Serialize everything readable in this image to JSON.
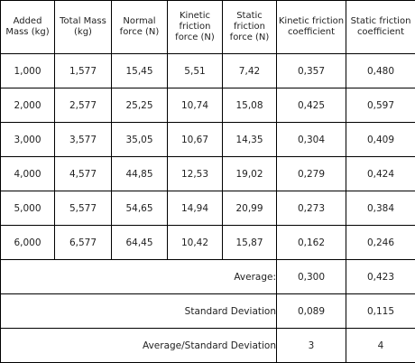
{
  "headers": [
    [
      "Added",
      "Mass (kg)"
    ],
    [
      "Total Mass",
      "(kg)"
    ],
    [
      "Normal",
      "force (N)"
    ],
    [
      "Kinetic",
      "friction",
      "force (N)"
    ],
    [
      "Static",
      "friction",
      "force (N)"
    ],
    [
      "Kinetic friction",
      "coefficient"
    ],
    [
      "Static friction",
      "coefficient"
    ]
  ],
  "rows": [
    [
      "1,000",
      "1,577",
      "15,45",
      "5,51",
      "7,42",
      "0,357",
      "0,480"
    ],
    [
      "2,000",
      "2,577",
      "25,25",
      "10,74",
      "15,08",
      "0,425",
      "0,597"
    ],
    [
      "3,000",
      "3,577",
      "35,05",
      "10,67",
      "14,35",
      "0,304",
      "0,409"
    ],
    [
      "4,000",
      "4,577",
      "44,85",
      "12,53",
      "19,02",
      "0,279",
      "0,424"
    ],
    [
      "5,000",
      "5,577",
      "54,65",
      "14,94",
      "20,99",
      "0,273",
      "0,384"
    ],
    [
      "6,000",
      "6,577",
      "64,45",
      "10,42",
      "15,87",
      "0,162",
      "0,246"
    ]
  ],
  "summary": {
    "average_label": "Average:",
    "average_kinetic": "0,300",
    "average_static": "0,423",
    "std_label": "Standard Deviation",
    "std_kinetic": "0,089",
    "std_static": "0,115",
    "ratio_label": "Average/Standard Deviation",
    "ratio_kinetic": "3",
    "ratio_static": "4"
  }
}
